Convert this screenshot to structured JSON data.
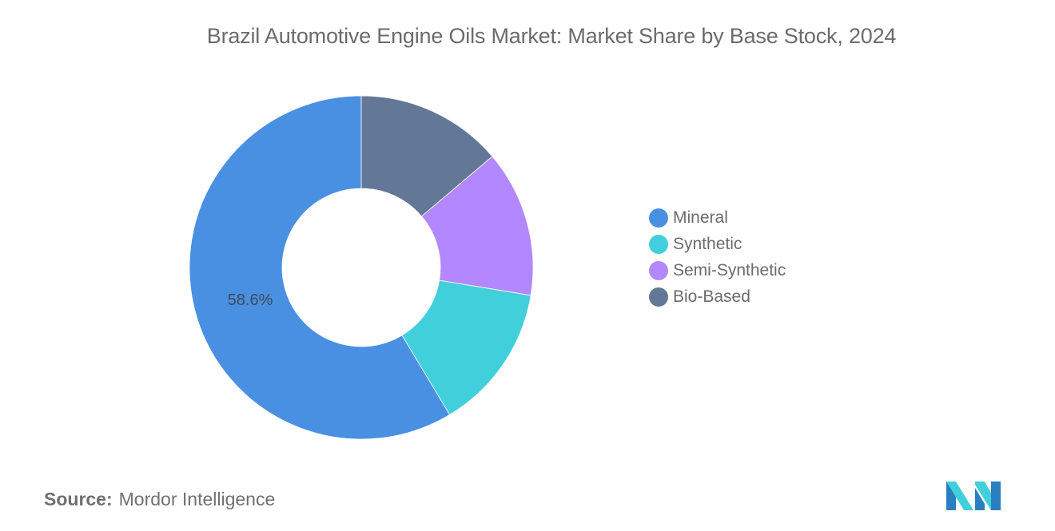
{
  "title": "Brazil Automotive Engine Oils Market: Market Share by Base Stock, 2024",
  "legend": [
    {
      "label": "Mineral",
      "color": "#4a90e2"
    },
    {
      "label": "Synthetic",
      "color": "#41cfdb"
    },
    {
      "label": "Semi-Synthetic",
      "color": "#b388ff"
    },
    {
      "label": "Bio-Based",
      "color": "#637896"
    }
  ],
  "data_label": "58.6%",
  "source": {
    "label": "Source:",
    "value": "Mordor Intelligence"
  },
  "logo": {
    "colors": [
      "#2a7fc1",
      "#41cfdb"
    ]
  },
  "chart_data": {
    "type": "pie",
    "variant": "donut",
    "title": "Brazil Automotive Engine Oils Market: Market Share by Base Stock, 2024",
    "categories": [
      "Mineral",
      "Synthetic",
      "Semi-Synthetic",
      "Bio-Based"
    ],
    "values": [
      58.6,
      13.8,
      13.8,
      13.8
    ],
    "unit": "%",
    "colors": [
      "#4a90e2",
      "#41cfdb",
      "#b388ff",
      "#637896"
    ],
    "data_labels": [
      {
        "category": "Mineral",
        "text": "58.6%"
      }
    ],
    "legend_position": "right",
    "start_angle": "12 o'clock, counter-order (Bio-Based first clockwise)"
  }
}
